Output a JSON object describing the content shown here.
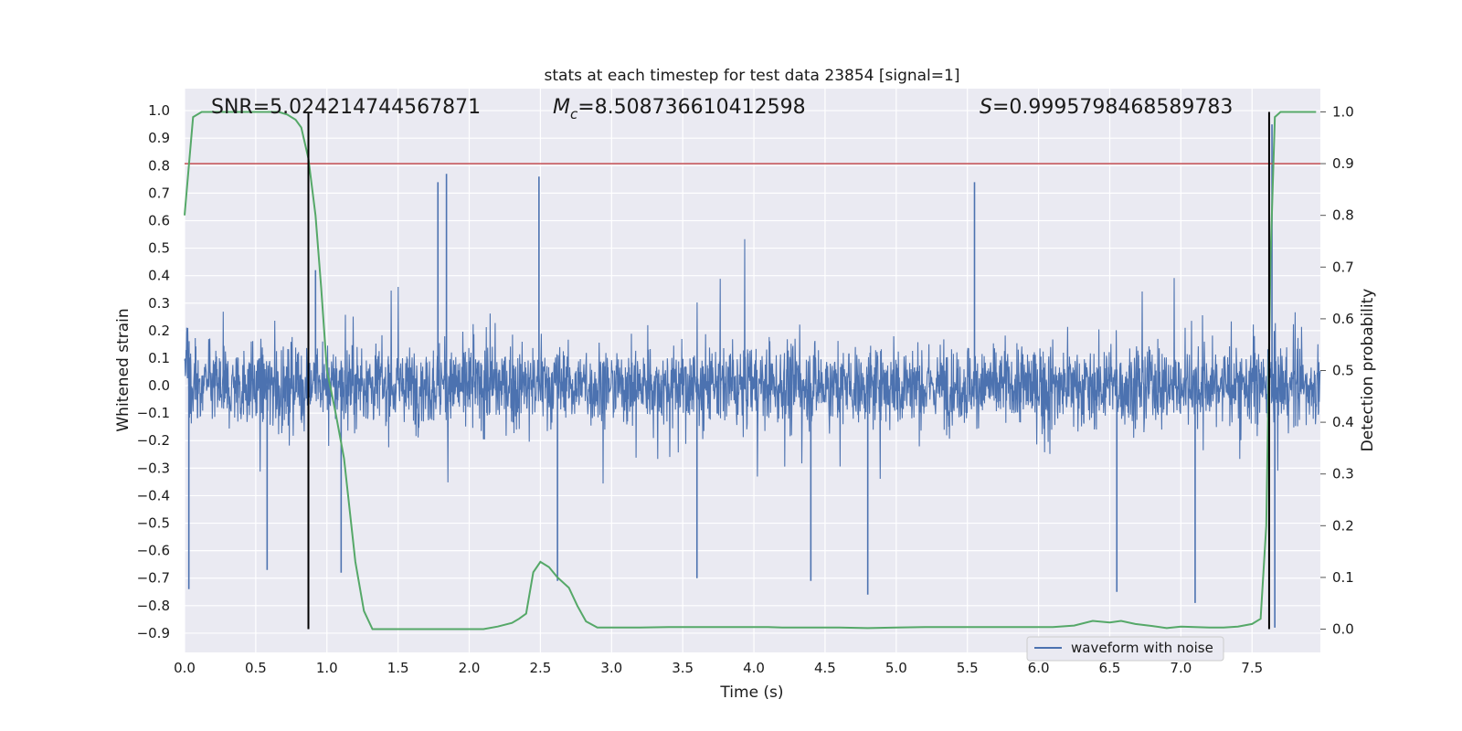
{
  "chart_data": {
    "type": "line",
    "title": "stats at each timestep for test data 23854 [signal=1]",
    "xlabel": "Time (s)",
    "ylabel_left": "Whitened strain",
    "ylabel_right": "Detection probability",
    "xlim": [
      0.0,
      7.98
    ],
    "ylim_left": [
      -0.97,
      1.08
    ],
    "ylim_right": [
      -0.045,
      1.045
    ],
    "x_ticks": [
      "0.0",
      "0.5",
      "1.0",
      "1.5",
      "2.0",
      "2.5",
      "3.0",
      "3.5",
      "4.0",
      "4.5",
      "5.0",
      "5.5",
      "6.0",
      "6.5",
      "7.0",
      "7.5"
    ],
    "y_ticks_left": [
      "-0.9",
      "-0.8",
      "-0.7",
      "-0.6",
      "-0.5",
      "-0.4",
      "-0.3",
      "-0.2",
      "-0.1",
      "0.0",
      "0.1",
      "0.2",
      "0.3",
      "0.4",
      "0.5",
      "0.6",
      "0.7",
      "0.8",
      "0.9",
      "1.0"
    ],
    "y_ticks_right": [
      "0.0",
      "0.1",
      "0.2",
      "0.3",
      "0.4",
      "0.5",
      "0.6",
      "0.7",
      "0.8",
      "0.9",
      "1.0"
    ],
    "grid": true,
    "legend": {
      "position": "lower-right",
      "entries": [
        "waveform with noise"
      ]
    },
    "annotations": {
      "snr_label": "SNR=5.024214744567871",
      "mc_symbol": "M",
      "mc_subscript": "c",
      "mc_value": "=8.508736610412598",
      "s_symbol": "S",
      "s_value": "=0.9995798468589783"
    },
    "threshold_probability": 0.9,
    "vertical_markers": [
      0.87,
      7.62
    ],
    "series": [
      {
        "name": "waveform with noise",
        "color": "#4c72b0",
        "axis": "left",
        "description_points": {
          "x_range": [
            0.0,
            7.98
          ],
          "envelope_typical": [
            -0.3,
            0.3
          ],
          "peaks": [
            {
              "x": 0.03,
              "y": -0.74
            },
            {
              "x": 0.58,
              "y": -0.67
            },
            {
              "x": 0.92,
              "y": 0.42
            },
            {
              "x": 1.1,
              "y": -0.68
            },
            {
              "x": 1.84,
              "y": 0.77
            },
            {
              "x": 1.78,
              "y": 0.74
            },
            {
              "x": 2.49,
              "y": 0.76
            },
            {
              "x": 2.62,
              "y": -0.71
            },
            {
              "x": 3.6,
              "y": -0.7
            },
            {
              "x": 4.4,
              "y": -0.71
            },
            {
              "x": 4.8,
              "y": -0.76
            },
            {
              "x": 5.55,
              "y": 0.74
            },
            {
              "x": 6.55,
              "y": -0.75
            },
            {
              "x": 7.1,
              "y": -0.79
            },
            {
              "x": 7.64,
              "y": 0.95
            },
            {
              "x": 7.66,
              "y": -0.88
            }
          ]
        }
      },
      {
        "name": "",
        "color": "#55a868",
        "axis": "right",
        "x": [
          0.0,
          0.06,
          0.12,
          0.2,
          0.3,
          0.4,
          0.5,
          0.6,
          0.66,
          0.72,
          0.78,
          0.82,
          0.87,
          0.92,
          0.96,
          1.0,
          1.06,
          1.12,
          1.2,
          1.26,
          1.32,
          1.4,
          1.5,
          1.6,
          1.7,
          1.8,
          1.9,
          2.0,
          2.1,
          2.2,
          2.3,
          2.35,
          2.4,
          2.45,
          2.5,
          2.56,
          2.62,
          2.7,
          2.76,
          2.82,
          2.9,
          3.0,
          3.2,
          3.4,
          3.55,
          3.7,
          3.85,
          4.0,
          4.1,
          4.2,
          4.4,
          4.6,
          4.8,
          5.0,
          5.2,
          5.4,
          5.6,
          5.8,
          5.95,
          6.1,
          6.25,
          6.38,
          6.5,
          6.58,
          6.68,
          6.8,
          6.9,
          7.0,
          7.1,
          7.2,
          7.3,
          7.4,
          7.5,
          7.56,
          7.6,
          7.63,
          7.66,
          7.7,
          7.75,
          7.8,
          7.9,
          7.95
        ],
        "values": [
          0.8,
          0.99,
          1.0,
          1.0,
          1.0,
          1.0,
          1.0,
          1.0,
          1.0,
          0.995,
          0.985,
          0.97,
          0.91,
          0.8,
          0.66,
          0.5,
          0.42,
          0.33,
          0.13,
          0.035,
          0.0,
          0.0,
          0.0,
          0.0,
          0.0,
          0.0,
          0.0,
          0.0,
          0.0,
          0.005,
          0.012,
          0.02,
          0.03,
          0.11,
          0.13,
          0.12,
          0.1,
          0.08,
          0.045,
          0.015,
          0.003,
          0.003,
          0.003,
          0.004,
          0.004,
          0.004,
          0.004,
          0.004,
          0.004,
          0.003,
          0.003,
          0.003,
          0.002,
          0.003,
          0.004,
          0.004,
          0.004,
          0.004,
          0.004,
          0.004,
          0.007,
          0.016,
          0.013,
          0.016,
          0.01,
          0.006,
          0.002,
          0.005,
          0.004,
          0.003,
          0.003,
          0.005,
          0.01,
          0.02,
          0.2,
          0.72,
          0.99,
          1.0,
          1.0,
          1.0,
          1.0,
          1.0
        ]
      }
    ]
  }
}
